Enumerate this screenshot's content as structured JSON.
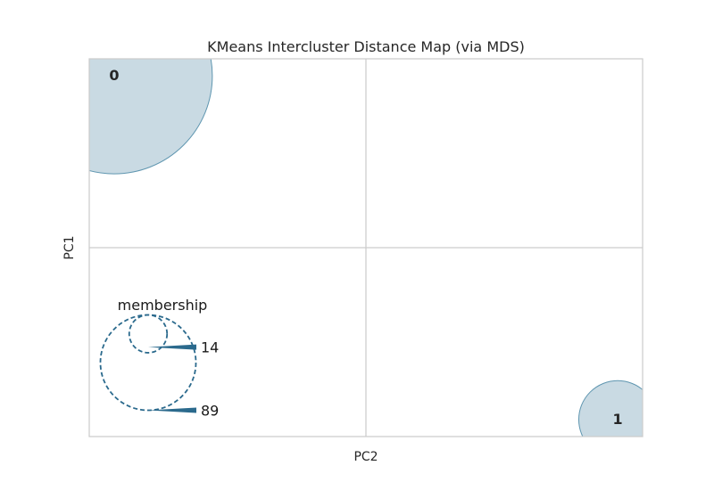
{
  "chart_data": {
    "type": "scatter",
    "title": "KMeans Intercluster Distance Map (via MDS)",
    "xlabel": "PC2",
    "ylabel": "PC1",
    "xlim": [
      -1,
      1
    ],
    "ylim": [
      -1,
      1
    ],
    "grid": true,
    "xticks": [
      0
    ],
    "yticks": [
      0
    ],
    "clusters": [
      {
        "label": "0",
        "x": -0.91,
        "y": 0.91,
        "size": 89
      },
      {
        "label": "1",
        "x": 0.91,
        "y": -0.91,
        "size": 14
      }
    ],
    "legend": {
      "title": "membership",
      "placement": "bottom-left",
      "sizes": [
        14,
        89
      ]
    },
    "colors": {
      "cluster_fill": "#c6d8e2",
      "cluster_edge": "#5f96b0",
      "legend_stroke": "#2b6a8d",
      "grid": "#cccccc",
      "frame": "#cccccc"
    }
  }
}
